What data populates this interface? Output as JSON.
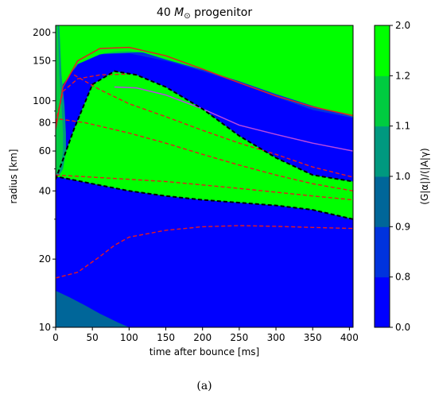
{
  "chart_data": {
    "type": "heatmap",
    "title_prefix": "40 ",
    "title_symbol": "M",
    "title_subscript": "⊙",
    "title_suffix": " progenitor",
    "xlabel": "time after bounce [ms]",
    "ylabel": "radius [km]",
    "xlim": [
      0,
      405
    ],
    "ylim": [
      10,
      215
    ],
    "yscale": "log",
    "x_ticks": [
      0,
      50,
      100,
      150,
      200,
      250,
      300,
      350,
      400
    ],
    "y_ticks": [
      10,
      20,
      40,
      60,
      80,
      100,
      150,
      200
    ],
    "grid": false,
    "colorbar": {
      "label": "(G|α|)/(|A|γ)",
      "levels": [
        0.0,
        0.8,
        0.9,
        1.0,
        1.1,
        1.2,
        2.0
      ],
      "colors": [
        "#0000ff",
        "#0033dd",
        "#006699",
        "#00997f",
        "#00cc40",
        "#00ff00"
      ]
    },
    "contours": {
      "black_dashed": [
        {
          "x": [
            0,
            10,
            25,
            50,
            80,
            110,
            150,
            200,
            250,
            300,
            350,
            405
          ],
          "y": [
            45,
            55,
            75,
            118,
            135,
            130,
            115,
            92,
            70,
            56,
            47,
            44
          ]
        },
        {
          "x": [
            405,
            350,
            300,
            250,
            200,
            150,
            100,
            50,
            20,
            5,
            0
          ],
          "y": [
            30,
            33,
            34.5,
            35.5,
            36.5,
            38,
            40,
            43,
            45,
            46,
            46
          ]
        }
      ],
      "red_solid": {
        "x": [
          0,
          10,
          30,
          60,
          100,
          150,
          200,
          250,
          300,
          350,
          405
        ],
        "y": [
          75,
          115,
          150,
          170,
          172,
          158,
          138,
          120,
          105,
          94,
          86
        ]
      },
      "magenta_solid": {
        "x": [
          80,
          110,
          150,
          200,
          250,
          300,
          350,
          405
        ],
        "y": [
          115,
          114,
          106,
          92,
          78,
          71,
          65,
          60
        ]
      },
      "red_dashed": [
        {
          "x": [
            0,
            10,
            30,
            60,
            90,
            100
          ],
          "y": [
            80,
            110,
            125,
            130,
            131,
            131
          ]
        },
        {
          "x": [
            25,
            60,
            100,
            150,
            200,
            250,
            300,
            350,
            405
          ],
          "y": [
            130,
            112,
            97,
            85,
            74,
            65,
            58,
            51,
            46
          ]
        },
        {
          "x": [
            5,
            40,
            100,
            150,
            200,
            250,
            300,
            350,
            405
          ],
          "y": [
            83,
            80,
            72,
            65,
            58,
            52,
            47,
            43,
            40
          ]
        },
        {
          "x": [
            0,
            50,
            100,
            150,
            200,
            250,
            300,
            350,
            405
          ],
          "y": [
            47,
            46,
            45,
            44,
            42.5,
            41,
            39.5,
            38,
            36.5
          ]
        },
        {
          "x": [
            0,
            30,
            60,
            80,
            100,
            150,
            200,
            250,
            300,
            350,
            405
          ],
          "y": [
            16.5,
            17.5,
            20.5,
            23,
            25,
            26.8,
            27.8,
            28.1,
            27.9,
            27.6,
            27.3
          ]
        }
      ]
    }
  },
  "caption": "(a)"
}
